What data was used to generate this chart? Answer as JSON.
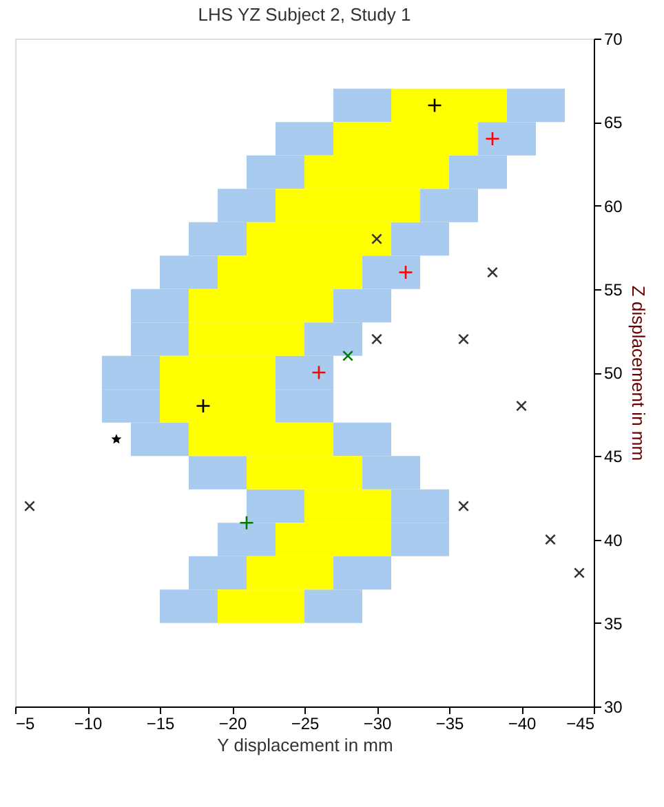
{
  "chart_data": {
    "type": "scatter",
    "title": "LHS YZ Subject 2, Study 1",
    "xlabel": "Y displacement in mm",
    "ylabel": "Z displacement in mm",
    "xlim": [
      -5,
      -45
    ],
    "ylim": [
      30,
      70
    ],
    "xticks": [
      -5,
      -10,
      -15,
      -20,
      -25,
      -30,
      -35,
      -40,
      -45
    ],
    "yticks": [
      30,
      35,
      40,
      45,
      50,
      55,
      60,
      65,
      70
    ],
    "grid": false,
    "series": [
      {
        "marker": "square",
        "color": "#a9cbef",
        "x": [
          -28,
          -30,
          -40,
          -42,
          -24,
          -26,
          -38,
          -40,
          -22,
          -24,
          -36,
          -38,
          -20,
          -22,
          -34,
          -36,
          -18,
          -20,
          -32,
          -34,
          -16,
          -18,
          -30,
          -32,
          -14,
          -16,
          -28,
          -30,
          -14,
          -16,
          -26,
          -28,
          -12,
          -14,
          -24,
          -26,
          -12,
          -14,
          -24,
          -26,
          -14,
          -16,
          -28,
          -30,
          -18,
          -20,
          -30,
          -32,
          -22,
          -24,
          -32,
          -34,
          -20,
          -22,
          -32,
          -34,
          -18,
          -20,
          -28,
          -30,
          -16,
          -18,
          -26,
          -28
        ],
        "values": [
          66,
          66,
          66,
          66,
          64,
          64,
          64,
          64,
          62,
          62,
          62,
          62,
          60,
          60,
          60,
          60,
          58,
          58,
          58,
          58,
          56,
          56,
          56,
          56,
          54,
          54,
          54,
          54,
          52,
          52,
          52,
          52,
          50,
          50,
          50,
          50,
          48,
          48,
          48,
          48,
          46,
          46,
          46,
          46,
          44,
          44,
          44,
          44,
          42,
          42,
          42,
          42,
          40,
          40,
          40,
          40,
          38,
          38,
          38,
          38,
          36,
          36,
          36,
          36
        ]
      },
      {
        "marker": "square",
        "color": "#ffff00",
        "x": [
          -32,
          -34,
          -36,
          -38,
          -28,
          -30,
          -32,
          -34,
          -36,
          -26,
          -28,
          -30,
          -32,
          -34,
          -24,
          -26,
          -28,
          -30,
          -32,
          -22,
          -24,
          -26,
          -28,
          -30,
          -20,
          -22,
          -24,
          -26,
          -28,
          -18,
          -20,
          -22,
          -24,
          -26,
          -18,
          -20,
          -22,
          -24,
          -16,
          -18,
          -20,
          -22,
          -16,
          -18,
          -20,
          -22,
          -18,
          -20,
          -22,
          -24,
          -26,
          -22,
          -24,
          -26,
          -28,
          -26,
          -28,
          -30,
          -24,
          -26,
          -28,
          -30,
          -22,
          -24,
          -26,
          -20,
          -22,
          -24
        ],
        "values": [
          66,
          66,
          66,
          66,
          64,
          64,
          64,
          64,
          64,
          62,
          62,
          62,
          62,
          62,
          60,
          60,
          60,
          60,
          60,
          58,
          58,
          58,
          58,
          58,
          56,
          56,
          56,
          56,
          56,
          54,
          54,
          54,
          54,
          54,
          52,
          52,
          52,
          52,
          50,
          50,
          50,
          50,
          48,
          48,
          48,
          48,
          46,
          46,
          46,
          46,
          46,
          44,
          44,
          44,
          44,
          42,
          42,
          42,
          40,
          40,
          40,
          40,
          38,
          38,
          38,
          36,
          36,
          36
        ]
      },
      {
        "marker": "x",
        "color": "#333333",
        "x": [
          -30,
          -38,
          -30,
          -36,
          -40,
          -6,
          -36,
          -42,
          -44
        ],
        "values": [
          58,
          56,
          52,
          52,
          48,
          42,
          42,
          40,
          38
        ]
      },
      {
        "marker": "cross",
        "color": "#000000",
        "x": [
          -34,
          -18
        ],
        "values": [
          66,
          48
        ]
      },
      {
        "marker": "cross",
        "color": "#ff0000",
        "x": [
          -38,
          -32,
          -26
        ],
        "values": [
          64,
          56,
          50
        ]
      },
      {
        "marker": "star",
        "color": "#000000",
        "x": [
          -12
        ],
        "values": [
          46
        ]
      },
      {
        "marker": "x",
        "color": "#007a00",
        "x": [
          -28
        ],
        "values": [
          51
        ]
      },
      {
        "marker": "cross",
        "color": "#007a00",
        "x": [
          -21
        ],
        "values": [
          41
        ]
      }
    ]
  }
}
